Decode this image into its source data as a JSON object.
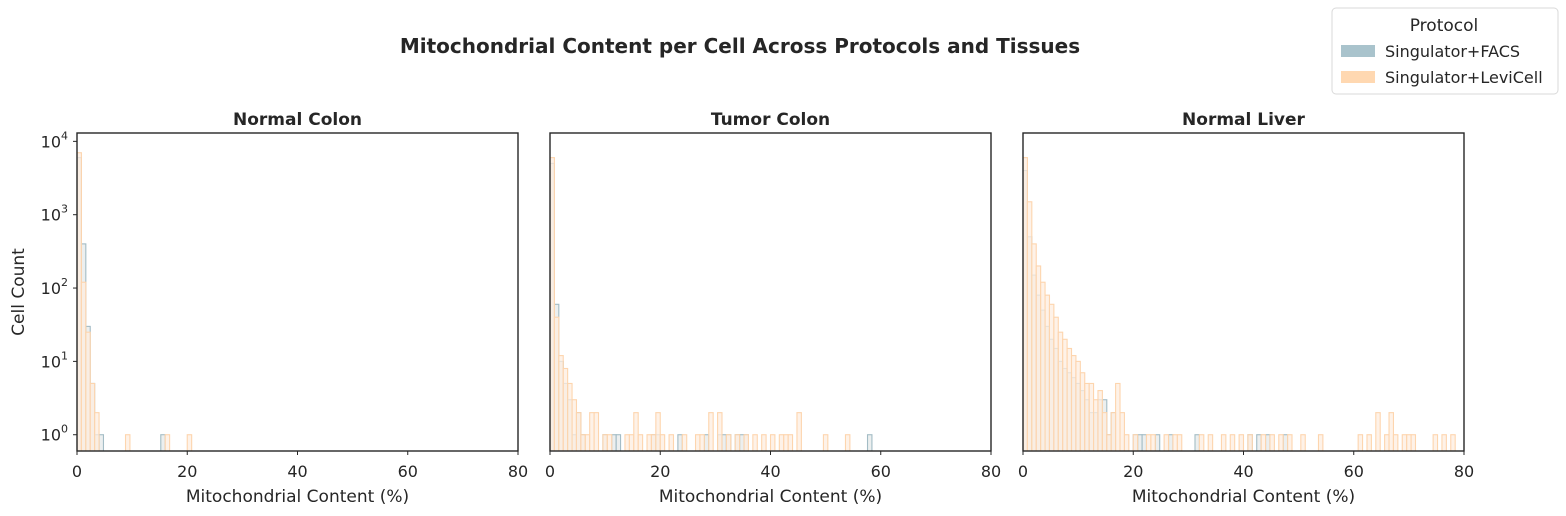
{
  "chart_data": {
    "type": "histogram",
    "title": "Mitochondrial Content per Cell Across Protocols and Tissues",
    "xlabel": "Mitochondrial Content (%)",
    "ylabel": "Cell Count",
    "yscale": "log",
    "xlim": [
      0,
      80
    ],
    "ylim": [
      0.6,
      13000
    ],
    "x_ticks": [
      0,
      20,
      40,
      60,
      80
    ],
    "y_ticks": [
      {
        "base": "10",
        "exp": "0",
        "value": 1
      },
      {
        "base": "10",
        "exp": "1",
        "value": 10
      },
      {
        "base": "10",
        "exp": "2",
        "value": 100
      },
      {
        "base": "10",
        "exp": "3",
        "value": 1000
      },
      {
        "base": "10",
        "exp": "4",
        "value": 10000
      }
    ],
    "grid": false,
    "bin_width": 0.8,
    "legend": {
      "title": "Protocol",
      "placement": "top-right",
      "entries": [
        {
          "label": "Singulator+FACS",
          "color": "#a9c3cc"
        },
        {
          "label": "Singulator+LeviCell",
          "color": "#ffd8b1"
        }
      ]
    },
    "series_colors": {
      "Singulator+FACS": {
        "fill": "#e5eaea",
        "stroke": "#a3bcc5"
      },
      "Singulator+LeviCell": {
        "fill": "#fdeee0",
        "stroke": "#fdd5ae"
      }
    },
    "panels": [
      {
        "title": "Normal Colon",
        "series": [
          {
            "name": "Singulator+FACS",
            "bins": [
              [
                0,
                6000
              ],
              [
                0.8,
                400
              ],
              [
                1.6,
                30
              ],
              [
                2.4,
                5
              ],
              [
                3.2,
                1
              ],
              [
                4.0,
                1
              ],
              [
                15.2,
                1
              ]
            ]
          },
          {
            "name": "Singulator+LeviCell",
            "bins": [
              [
                0,
                7000
              ],
              [
                0.8,
                120
              ],
              [
                1.6,
                25
              ],
              [
                2.4,
                5
              ],
              [
                3.2,
                2
              ],
              [
                8.8,
                1
              ],
              [
                16.0,
                1
              ],
              [
                20.0,
                1
              ]
            ]
          }
        ]
      },
      {
        "title": "Tumor Colon",
        "series": [
          {
            "name": "Singulator+FACS",
            "bins": [
              [
                0,
                5000
              ],
              [
                0.8,
                60
              ],
              [
                1.6,
                10
              ],
              [
                2.4,
                5
              ],
              [
                3.2,
                3
              ],
              [
                4.0,
                1
              ],
              [
                4.8,
                2
              ],
              [
                5.6,
                1
              ],
              [
                9.6,
                1
              ],
              [
                11.2,
                1
              ],
              [
                12.0,
                1
              ],
              [
                18.4,
                1
              ],
              [
                19.2,
                1
              ],
              [
                23.2,
                1
              ],
              [
                28.0,
                1
              ],
              [
                30.4,
                1
              ],
              [
                31.2,
                1
              ],
              [
                32.0,
                1
              ],
              [
                33.6,
                1
              ],
              [
                34.4,
                1
              ],
              [
                35.2,
                1
              ],
              [
                57.6,
                1
              ]
            ]
          },
          {
            "name": "Singulator+LeviCell",
            "bins": [
              [
                0,
                6000
              ],
              [
                0.8,
                40
              ],
              [
                1.6,
                12
              ],
              [
                2.4,
                8
              ],
              [
                3.2,
                5
              ],
              [
                4.0,
                3
              ],
              [
                4.8,
                2
              ],
              [
                5.6,
                1
              ],
              [
                6.4,
                1
              ],
              [
                7.2,
                2
              ],
              [
                8.0,
                2
              ],
              [
                9.6,
                1
              ],
              [
                10.4,
                1
              ],
              [
                13.6,
                1
              ],
              [
                14.4,
                1
              ],
              [
                15.2,
                2
              ],
              [
                16.0,
                1
              ],
              [
                17.6,
                1
              ],
              [
                18.4,
                1
              ],
              [
                19.2,
                2
              ],
              [
                20.0,
                1
              ],
              [
                21.6,
                1
              ],
              [
                24.0,
                1
              ],
              [
                26.4,
                1
              ],
              [
                27.2,
                1
              ],
              [
                28.8,
                2
              ],
              [
                30.4,
                2
              ],
              [
                32.0,
                1
              ],
              [
                33.6,
                1
              ],
              [
                35.2,
                1
              ],
              [
                36.8,
                1
              ],
              [
                38.4,
                1
              ],
              [
                40.0,
                1
              ],
              [
                41.6,
                1
              ],
              [
                42.4,
                1
              ],
              [
                43.2,
                1
              ],
              [
                44.8,
                2
              ],
              [
                49.6,
                1
              ],
              [
                53.6,
                1
              ]
            ]
          }
        ]
      },
      {
        "title": "Normal Liver",
        "series": [
          {
            "name": "Singulator+FACS",
            "bins": [
              [
                0,
                4000
              ],
              [
                0.8,
                500
              ],
              [
                1.6,
                150
              ],
              [
                2.4,
                80
              ],
              [
                3.2,
                50
              ],
              [
                4.0,
                30
              ],
              [
                4.8,
                20
              ],
              [
                5.6,
                15
              ],
              [
                6.4,
                10
              ],
              [
                7.2,
                8
              ],
              [
                8.0,
                7
              ],
              [
                8.8,
                6
              ],
              [
                9.6,
                5
              ],
              [
                10.4,
                4
              ],
              [
                11.2,
                3
              ],
              [
                12.0,
                2
              ],
              [
                12.8,
                2
              ],
              [
                13.6,
                3
              ],
              [
                14.4,
                3
              ],
              [
                15.2,
                1
              ],
              [
                16.0,
                2
              ],
              [
                20.0,
                1
              ],
              [
                20.8,
                1
              ],
              [
                21.6,
                1
              ],
              [
                24.0,
                1
              ],
              [
                26.4,
                1
              ],
              [
                31.2,
                1
              ],
              [
                40.8,
                1
              ],
              [
                42.4,
                1
              ],
              [
                44.0,
                1
              ],
              [
                47.2,
                1
              ]
            ]
          },
          {
            "name": "Singulator+LeviCell",
            "bins": [
              [
                0,
                6000
              ],
              [
                0.8,
                1500
              ],
              [
                1.6,
                400
              ],
              [
                2.4,
                200
              ],
              [
                3.2,
                120
              ],
              [
                4.0,
                80
              ],
              [
                4.8,
                60
              ],
              [
                5.6,
                40
              ],
              [
                6.4,
                25
              ],
              [
                7.2,
                20
              ],
              [
                8.0,
                15
              ],
              [
                8.8,
                12
              ],
              [
                9.6,
                10
              ],
              [
                10.4,
                7
              ],
              [
                11.2,
                5
              ],
              [
                12.0,
                5
              ],
              [
                12.8,
                3
              ],
              [
                13.6,
                4
              ],
              [
                14.4,
                2
              ],
              [
                15.2,
                1
              ],
              [
                16.0,
                2
              ],
              [
                16.8,
                5
              ],
              [
                17.6,
                2
              ],
              [
                18.4,
                1
              ],
              [
                20.0,
                1
              ],
              [
                22.4,
                1
              ],
              [
                23.2,
                1
              ],
              [
                25.6,
                1
              ],
              [
                27.2,
                1
              ],
              [
                28.0,
                1
              ],
              [
                32.0,
                1
              ],
              [
                33.6,
                1
              ],
              [
                36.0,
                1
              ],
              [
                37.6,
                1
              ],
              [
                39.2,
                1
              ],
              [
                40.8,
                1
              ],
              [
                43.2,
                1
              ],
              [
                44.8,
                1
              ],
              [
                46.4,
                1
              ],
              [
                48.0,
                1
              ],
              [
                50.4,
                1
              ],
              [
                53.6,
                1
              ],
              [
                60.8,
                1
              ],
              [
                62.4,
                1
              ],
              [
                64.0,
                2
              ],
              [
                65.6,
                1
              ],
              [
                66.4,
                2
              ],
              [
                67.2,
                1
              ],
              [
                68.8,
                1
              ],
              [
                69.6,
                1
              ],
              [
                70.4,
                1
              ],
              [
                74.4,
                1
              ],
              [
                76.0,
                1
              ],
              [
                77.6,
                1
              ]
            ]
          }
        ]
      }
    ]
  }
}
